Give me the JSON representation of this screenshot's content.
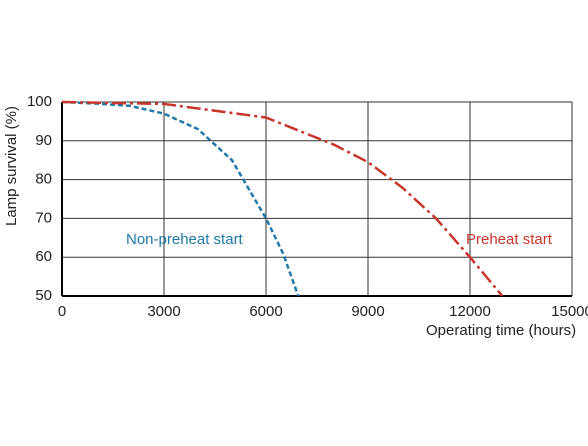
{
  "chart_data": {
    "type": "line",
    "x_label": "Operating time (hours)",
    "y_label": "Lamp survival  (%)",
    "xlim": [
      0,
      15000
    ],
    "xticks": [
      0,
      3000,
      6000,
      9000,
      12000,
      15000
    ],
    "ylim": [
      50,
      100
    ],
    "yticks": [
      50,
      60,
      70,
      80,
      90,
      100
    ],
    "grid": true,
    "series": [
      {
        "name": "Non-preheat start",
        "color": "#1f78a8",
        "style": "dashed",
        "x": [
          0,
          1000,
          2000,
          3000,
          4000,
          5000,
          6000,
          6500,
          6950
        ],
        "values": [
          100,
          99.6,
          99,
          97,
          93,
          85,
          70,
          61,
          50
        ]
      },
      {
        "name": "Preheat start",
        "color": "#c8352a",
        "style": "dashdot",
        "x": [
          0,
          3000,
          6000,
          8000,
          9000,
          10000,
          11000,
          12000,
          12950
        ],
        "values": [
          100,
          99.5,
          96,
          89,
          84.5,
          78,
          70,
          60,
          50
        ]
      }
    ]
  }
}
